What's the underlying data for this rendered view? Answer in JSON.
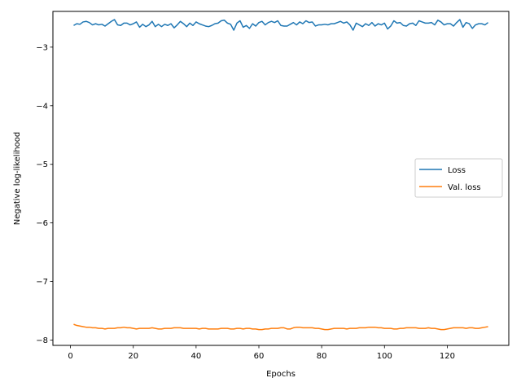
{
  "chart_data": {
    "type": "line",
    "title": "",
    "xlabel": "Epochs",
    "ylabel": "Negative log-likelihood",
    "xlim": [
      -5.6,
      139.6
    ],
    "ylim": [
      -8.09,
      -2.39
    ],
    "xticks": [
      0,
      20,
      40,
      60,
      80,
      100,
      120
    ],
    "yticks": [
      -3,
      -4,
      -5,
      -6,
      -7,
      -8
    ],
    "grid": false,
    "legend_position": "center-right",
    "x": [
      1,
      2,
      3,
      4,
      5,
      6,
      7,
      8,
      9,
      10,
      11,
      12,
      13,
      14,
      15,
      16,
      17,
      18,
      19,
      20,
      21,
      22,
      23,
      24,
      25,
      26,
      27,
      28,
      29,
      30,
      31,
      32,
      33,
      34,
      35,
      36,
      37,
      38,
      39,
      40,
      41,
      42,
      43,
      44,
      45,
      46,
      47,
      48,
      49,
      50,
      51,
      52,
      53,
      54,
      55,
      56,
      57,
      58,
      59,
      60,
      61,
      62,
      63,
      64,
      65,
      66,
      67,
      68,
      69,
      70,
      71,
      72,
      73,
      74,
      75,
      76,
      77,
      78,
      79,
      80,
      81,
      82,
      83,
      84,
      85,
      86,
      87,
      88,
      89,
      90,
      91,
      92,
      93,
      94,
      95,
      96,
      97,
      98,
      99,
      100,
      101,
      102,
      103,
      104,
      105,
      106,
      107,
      108,
      109,
      110,
      111,
      112,
      113,
      114,
      115,
      116,
      117,
      118,
      119,
      120,
      121,
      122,
      123,
      124,
      125,
      126,
      127,
      128,
      129,
      130,
      131,
      132,
      133
    ],
    "series": [
      {
        "name": "Loss",
        "color": "#1f77b4",
        "values": [
          -2.63,
          -2.6,
          -2.61,
          -2.57,
          -2.56,
          -2.58,
          -2.62,
          -2.6,
          -2.62,
          -2.61,
          -2.64,
          -2.6,
          -2.56,
          -2.53,
          -2.62,
          -2.63,
          -2.59,
          -2.59,
          -2.62,
          -2.6,
          -2.57,
          -2.66,
          -2.61,
          -2.65,
          -2.62,
          -2.56,
          -2.65,
          -2.61,
          -2.65,
          -2.61,
          -2.63,
          -2.6,
          -2.67,
          -2.62,
          -2.56,
          -2.6,
          -2.65,
          -2.59,
          -2.63,
          -2.57,
          -2.6,
          -2.62,
          -2.64,
          -2.65,
          -2.63,
          -2.6,
          -2.59,
          -2.55,
          -2.54,
          -2.59,
          -2.61,
          -2.71,
          -2.59,
          -2.55,
          -2.66,
          -2.63,
          -2.68,
          -2.6,
          -2.64,
          -2.58,
          -2.56,
          -2.62,
          -2.58,
          -2.56,
          -2.58,
          -2.55,
          -2.63,
          -2.64,
          -2.64,
          -2.61,
          -2.58,
          -2.62,
          -2.57,
          -2.6,
          -2.55,
          -2.58,
          -2.57,
          -2.64,
          -2.62,
          -2.62,
          -2.61,
          -2.62,
          -2.6,
          -2.6,
          -2.58,
          -2.56,
          -2.59,
          -2.57,
          -2.62,
          -2.71,
          -2.59,
          -2.62,
          -2.65,
          -2.6,
          -2.63,
          -2.58,
          -2.64,
          -2.6,
          -2.62,
          -2.59,
          -2.69,
          -2.64,
          -2.55,
          -2.59,
          -2.58,
          -2.63,
          -2.64,
          -2.6,
          -2.59,
          -2.63,
          -2.55,
          -2.57,
          -2.59,
          -2.59,
          -2.58,
          -2.62,
          -2.54,
          -2.57,
          -2.62,
          -2.6,
          -2.6,
          -2.64,
          -2.58,
          -2.53,
          -2.66,
          -2.58,
          -2.6,
          -2.68,
          -2.62,
          -2.6,
          -2.6,
          -2.62,
          -2.58
        ]
      },
      {
        "name": "Val. loss",
        "color": "#ff7f0e",
        "values": [
          -7.73,
          -7.75,
          -7.76,
          -7.77,
          -7.78,
          -7.78,
          -7.79,
          -7.79,
          -7.8,
          -7.8,
          -7.81,
          -7.8,
          -7.8,
          -7.8,
          -7.79,
          -7.79,
          -7.78,
          -7.79,
          -7.79,
          -7.8,
          -7.81,
          -7.8,
          -7.8,
          -7.8,
          -7.8,
          -7.79,
          -7.8,
          -7.81,
          -7.81,
          -7.8,
          -7.8,
          -7.8,
          -7.79,
          -7.79,
          -7.79,
          -7.8,
          -7.8,
          -7.8,
          -7.8,
          -7.8,
          -7.81,
          -7.8,
          -7.8,
          -7.81,
          -7.81,
          -7.81,
          -7.81,
          -7.8,
          -7.8,
          -7.8,
          -7.81,
          -7.81,
          -7.8,
          -7.8,
          -7.81,
          -7.8,
          -7.8,
          -7.81,
          -7.81,
          -7.82,
          -7.82,
          -7.81,
          -7.81,
          -7.8,
          -7.8,
          -7.8,
          -7.79,
          -7.79,
          -7.81,
          -7.81,
          -7.79,
          -7.78,
          -7.78,
          -7.79,
          -7.79,
          -7.79,
          -7.79,
          -7.8,
          -7.8,
          -7.81,
          -7.82,
          -7.82,
          -7.81,
          -7.8,
          -7.8,
          -7.8,
          -7.8,
          -7.81,
          -7.8,
          -7.8,
          -7.8,
          -7.79,
          -7.79,
          -7.79,
          -7.78,
          -7.78,
          -7.78,
          -7.79,
          -7.79,
          -7.8,
          -7.8,
          -7.8,
          -7.81,
          -7.81,
          -7.8,
          -7.8,
          -7.79,
          -7.79,
          -7.79,
          -7.79,
          -7.8,
          -7.8,
          -7.8,
          -7.79,
          -7.8,
          -7.8,
          -7.81,
          -7.82,
          -7.82,
          -7.81,
          -7.8,
          -7.79,
          -7.79,
          -7.79,
          -7.79,
          -7.8,
          -7.79,
          -7.79,
          -7.8,
          -7.8,
          -7.79,
          -7.78,
          -7.77
        ]
      }
    ]
  }
}
